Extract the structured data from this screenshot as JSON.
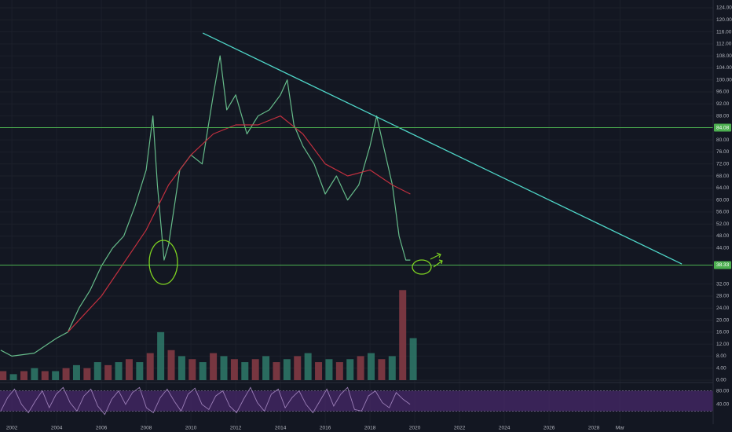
{
  "chart_data": [
    {
      "type": "line",
      "xlim": [
        2001.47,
        2033.33
      ],
      "ylim": [
        0,
        124
      ],
      "xticks": [
        2002,
        2004,
        2006,
        2008,
        2010,
        2012,
        2014,
        2016,
        2018,
        2020,
        2022,
        2024,
        2026,
        2028,
        {
          "value": 2029.17,
          "label": "Mar"
        }
      ],
      "yticks": [
        {
          "value": 0,
          "label": "0.00"
        },
        {
          "value": 4,
          "label": "4.00"
        },
        {
          "value": 8,
          "label": "8.00"
        },
        {
          "value": 12,
          "label": "12.00"
        },
        {
          "value": 16,
          "label": "16.00"
        },
        {
          "value": 20,
          "label": "20.00"
        },
        {
          "value": 24,
          "label": "24.00"
        },
        {
          "value": 28,
          "label": "28.00"
        },
        {
          "value": 32,
          "label": "32.00"
        },
        {
          "value": 44,
          "label": "44.00"
        },
        {
          "value": 48,
          "label": "48.00"
        },
        {
          "value": 52,
          "label": "52.00"
        },
        {
          "value": 56,
          "label": "56.00"
        },
        {
          "value": 60,
          "label": "60.00"
        },
        {
          "value": 64,
          "label": "64.00"
        },
        {
          "value": 68,
          "label": "68.00"
        },
        {
          "value": 72,
          "label": "72.00"
        },
        {
          "value": 76,
          "label": "76.00"
        },
        {
          "value": 80,
          "label": "80.00"
        },
        {
          "value": 88,
          "label": "88.00"
        },
        {
          "value": 92,
          "label": "92.00"
        },
        {
          "value": 96,
          "label": "96.00"
        },
        {
          "value": 100,
          "label": "100.00"
        },
        {
          "value": 104,
          "label": "104.00"
        },
        {
          "value": 108,
          "label": "108.00"
        },
        {
          "value": 112,
          "label": "112.00"
        },
        {
          "value": 116,
          "label": "116.00"
        },
        {
          "value": 120,
          "label": "120.00"
        },
        {
          "value": 124,
          "label": "124.00"
        }
      ],
      "grid": true,
      "series": [
        {
          "color": "#66bb8a",
          "x": [
            2001.5,
            2002,
            2003,
            2004,
            2004.5,
            2005,
            2005.5,
            2006,
            2006.5,
            2007,
            2007.5,
            2008,
            2008.3,
            2008.5,
            2008.8,
            2009,
            2009.5,
            2010,
            2010.5,
            2011,
            2011.3,
            2011.6,
            2012,
            2012.5,
            2013,
            2013.5,
            2014,
            2014.3,
            2014.6,
            2015,
            2015.5,
            2016,
            2016.5,
            2017,
            2017.5,
            2018,
            2018.3,
            2018.6,
            2019,
            2019.3,
            2019.6,
            2019.8
          ],
          "values": [
            10,
            8,
            9,
            14,
            16,
            24,
            30,
            38,
            44,
            48,
            58,
            70,
            88,
            65,
            40,
            45,
            70,
            75,
            72,
            95,
            108,
            90,
            95,
            82,
            88,
            90,
            95,
            100,
            85,
            78,
            72,
            62,
            68,
            60,
            65,
            78,
            88,
            78,
            65,
            48,
            40,
            40
          ]
        },
        {
          "color": "#c2303f",
          "x": [
            2004.5,
            2006,
            2008,
            2009,
            2010,
            2011,
            2012,
            2013,
            2014,
            2015,
            2016,
            2017,
            2018,
            2019,
            2019.8
          ],
          "values": [
            16,
            28,
            50,
            65,
            75,
            82,
            85,
            85,
            88,
            82,
            72,
            68,
            70,
            65,
            62
          ]
        }
      ],
      "trendline": {
        "color": "#4fd6c8",
        "x": [
          2010.53,
          2031.93
        ],
        "values": [
          115.6,
          38.7
        ]
      },
      "hlines": [
        84.08,
        38.33
      ],
      "hline_color": "#4caf50"
    },
    {
      "type": "bar",
      "ylim": [
        0,
        124
      ],
      "colors": [
        "#8a3c45",
        "#2f7a6a"
      ],
      "x": [
        2001.6,
        2002.07,
        2002.54,
        2003.01,
        2003.48,
        2003.95,
        2004.42,
        2004.89,
        2005.36,
        2005.83,
        2006.3,
        2006.77,
        2007.24,
        2007.71,
        2008.18,
        2008.65,
        2009.12,
        2009.59,
        2010.06,
        2010.53,
        2011,
        2011.47,
        2011.94,
        2012.41,
        2012.88,
        2013.35,
        2013.82,
        2014.29,
        2014.76,
        2015.23,
        2015.7,
        2016.17,
        2016.64,
        2017.11,
        2017.58,
        2018.05,
        2018.52,
        2018.99,
        2019.46,
        2019.93
      ],
      "values": [
        3,
        2,
        3,
        4,
        3,
        3,
        4,
        5,
        4,
        6,
        5,
        6,
        7,
        6,
        9,
        16,
        10,
        8,
        7,
        6,
        9,
        8,
        7,
        6,
        7,
        8,
        6,
        7,
        8,
        9,
        6,
        7,
        6,
        7,
        8,
        9,
        7,
        8,
        30,
        14
      ]
    },
    {
      "type": "line",
      "ylim": [
        0,
        100
      ],
      "color": "#9c7fb8",
      "band": [
        20,
        80
      ],
      "band_color": "#4a2a6e",
      "yticks": [
        {
          "value": 40,
          "label": "40.00"
        },
        {
          "value": 80,
          "label": "80.00"
        }
      ],
      "x": [
        2001.5,
        2001.81,
        2002.12,
        2002.43,
        2002.74,
        2003.05,
        2003.36,
        2003.67,
        2003.98,
        2004.29,
        2004.6,
        2004.91,
        2005.22,
        2005.53,
        2005.84,
        2006.15,
        2006.46,
        2006.77,
        2007.08,
        2007.39,
        2007.7,
        2008.01,
        2008.32,
        2008.63,
        2008.94,
        2009.25,
        2009.56,
        2009.87,
        2010.18,
        2010.49,
        2010.8,
        2011.11,
        2011.42,
        2011.73,
        2012.04,
        2012.35,
        2012.66,
        2012.97,
        2013.28,
        2013.59,
        2013.9,
        2014.21,
        2014.52,
        2014.83,
        2015.14,
        2015.45,
        2015.76,
        2016.07,
        2016.38,
        2016.69,
        2017,
        2017.31,
        2017.62,
        2017.93,
        2018.24,
        2018.55,
        2018.86,
        2019.17,
        2019.48,
        2019.79
      ],
      "values": [
        20,
        60,
        85,
        40,
        15,
        50,
        80,
        30,
        70,
        90,
        45,
        20,
        65,
        85,
        35,
        10,
        55,
        80,
        40,
        75,
        90,
        30,
        15,
        60,
        85,
        50,
        20,
        70,
        88,
        40,
        25,
        65,
        80,
        35,
        15,
        55,
        90,
        45,
        20,
        70,
        85,
        30,
        60,
        80,
        40,
        15,
        50,
        85,
        35,
        70,
        90,
        25,
        20,
        65,
        80,
        45,
        30,
        75,
        55,
        40
      ]
    }
  ]
}
